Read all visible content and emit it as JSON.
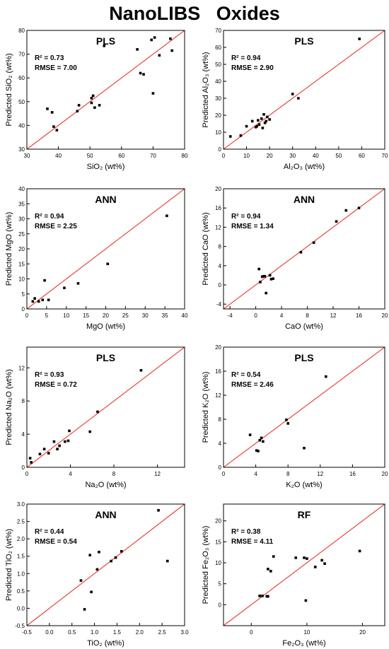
{
  "title": "NanoLIBS   Oxides",
  "chart_data": [
    {
      "type": "scatter",
      "method": "PLS",
      "stat_r2": "R² = 0.73",
      "stat_rmse": "RMSE = 7.00",
      "xlabel": "SiO₂ (wt%)",
      "ylabel": "Predicted SiO₂ (wt%)",
      "xlim": [
        30,
        80
      ],
      "ylim": [
        30,
        80
      ],
      "xticks": [
        30,
        40,
        50,
        60,
        70,
        80
      ],
      "yticks": [
        30,
        40,
        50,
        60,
        70,
        80
      ],
      "xticklabels": [
        "30",
        "40",
        "50",
        "60",
        "70",
        "80"
      ],
      "yticklabels": [
        "30",
        "40",
        "50",
        "60",
        "70",
        "80"
      ],
      "points": [
        [
          36.5,
          47
        ],
        [
          38,
          45.5
        ],
        [
          38.5,
          39.5
        ],
        [
          39.5,
          38
        ],
        [
          46,
          46
        ],
        [
          46.5,
          48.5
        ],
        [
          50.5,
          49.5
        ],
        [
          50.5,
          51.5
        ],
        [
          51,
          52.5
        ],
        [
          51.5,
          47.5
        ],
        [
          53,
          48.5
        ],
        [
          54.5,
          73.5
        ],
        [
          65,
          72
        ],
        [
          66,
          62
        ],
        [
          67,
          61.5
        ],
        [
          69.5,
          76
        ],
        [
          70,
          53.5
        ],
        [
          70.5,
          77
        ],
        [
          72,
          69.5
        ],
        [
          75.5,
          76.5
        ],
        [
          76,
          71.5
        ]
      ]
    },
    {
      "type": "scatter",
      "method": "PLS",
      "stat_r2": "R² = 0.94",
      "stat_rmse": "RMSE = 2.90",
      "xlabel": "Al₂O₃ (wt%)",
      "ylabel": "Predicted Al₂O₃ (wt%)",
      "xlim": [
        0,
        70
      ],
      "ylim": [
        0,
        70
      ],
      "xticks": [
        0,
        10,
        20,
        30,
        40,
        50,
        60,
        70
      ],
      "yticks": [
        0,
        10,
        20,
        30,
        40,
        50,
        60,
        70
      ],
      "xticklabels": [
        "0",
        "10",
        "20",
        "30",
        "40",
        "50",
        "60",
        "70"
      ],
      "yticklabels": [
        "0",
        "10",
        "20",
        "30",
        "40",
        "50",
        "60",
        "70"
      ],
      "points": [
        [
          3,
          7.5
        ],
        [
          7.5,
          8
        ],
        [
          10,
          13.5
        ],
        [
          12.5,
          16.5
        ],
        [
          14,
          13
        ],
        [
          14.5,
          13.5
        ],
        [
          15,
          17
        ],
        [
          15.5,
          14.5
        ],
        [
          16.5,
          18
        ],
        [
          17,
          12.5
        ],
        [
          17.5,
          20.5
        ],
        [
          18,
          15.5
        ],
        [
          18.5,
          16.5
        ],
        [
          19,
          19
        ],
        [
          20,
          17.5
        ],
        [
          30,
          32.5
        ],
        [
          32.5,
          30
        ],
        [
          59,
          65
        ]
      ]
    },
    {
      "type": "scatter",
      "method": "ANN",
      "stat_r2": "R² = 0.94",
      "stat_rmse": "RMSE = 2.25",
      "xlabel": "MgO (wt%)",
      "ylabel": "Predicted MgO (wt%)",
      "xlim": [
        0,
        40
      ],
      "ylim": [
        0,
        40
      ],
      "xticks": [
        0,
        5,
        10,
        15,
        20,
        25,
        30,
        35,
        40
      ],
      "yticks": [
        0,
        5,
        10,
        15,
        20,
        25,
        30,
        35,
        40
      ],
      "xticklabels": [
        "0",
        "5",
        "10",
        "15",
        "20",
        "25",
        "30",
        "35",
        "40"
      ],
      "yticklabels": [
        "0",
        "5",
        "10",
        "15",
        "20",
        "25",
        "30",
        "35",
        "40"
      ],
      "points": [
        [
          1.5,
          2.5
        ],
        [
          2,
          3.5
        ],
        [
          3,
          2.5
        ],
        [
          4,
          3
        ],
        [
          4.5,
          9.5
        ],
        [
          5.5,
          3
        ],
        [
          9.5,
          7
        ],
        [
          13,
          8.5
        ],
        [
          20.5,
          15
        ],
        [
          35.5,
          31
        ]
      ]
    },
    {
      "type": "scatter",
      "method": "ANN",
      "stat_r2": "R² = 0.94",
      "stat_rmse": "RMSE = 1.34",
      "xlabel": "CaO (wt%)",
      "ylabel": "Predicted CaO (wt%)",
      "xlim": [
        -5,
        20
      ],
      "ylim": [
        -5,
        20
      ],
      "xticks": [
        -4,
        0,
        4,
        8,
        12,
        16,
        20
      ],
      "yticks": [
        -4,
        0,
        4,
        8,
        12,
        16,
        20
      ],
      "xticklabels": [
        "-4",
        "0",
        "4",
        "8",
        "12",
        "16",
        "20"
      ],
      "yticklabels": [
        "-4",
        "0",
        "4",
        "8",
        "12",
        "16",
        "20"
      ],
      "points": [
        [
          0.5,
          3.3
        ],
        [
          0.7,
          0.6
        ],
        [
          1.0,
          1.7
        ],
        [
          1.2,
          1.8
        ],
        [
          1.4,
          1.8
        ],
        [
          1.6,
          -1.7
        ],
        [
          2.2,
          2.0
        ],
        [
          2.4,
          1.2
        ],
        [
          2.7,
          1.3
        ],
        [
          7,
          6.8
        ],
        [
          9,
          8.8
        ],
        [
          12.5,
          13.2
        ],
        [
          14,
          15.5
        ],
        [
          16,
          16
        ]
      ]
    },
    {
      "type": "scatter",
      "method": "PLS",
      "stat_r2": "R² = 0.93",
      "stat_rmse": "RMSE = 0.72",
      "xlabel": "Na₂O (wt%)",
      "ylabel": "Predicted Na₂O (wt%)",
      "xlim": [
        0,
        14.5
      ],
      "ylim": [
        0,
        14.5
      ],
      "xticks": [
        0,
        4,
        8,
        12
      ],
      "yticks": [
        0,
        4,
        8,
        12
      ],
      "xticklabels": [
        "0",
        "4",
        "8",
        "12"
      ],
      "yticklabels": [
        "0",
        "4",
        "8",
        "12"
      ],
      "points": [
        [
          0.3,
          1.1
        ],
        [
          0.4,
          0.6
        ],
        [
          1.2,
          1.6
        ],
        [
          1.6,
          2.2
        ],
        [
          2,
          1.7
        ],
        [
          2.5,
          3.1
        ],
        [
          2.8,
          2.2
        ],
        [
          3,
          2.6
        ],
        [
          3.5,
          3.1
        ],
        [
          3.8,
          3.2
        ],
        [
          3.9,
          4.4
        ],
        [
          5.8,
          4.3
        ],
        [
          6.5,
          6.7
        ],
        [
          10.5,
          11.7
        ]
      ]
    },
    {
      "type": "scatter",
      "method": "PLS",
      "stat_r2": "R² = 0.54",
      "stat_rmse": "RMSE = 2.46",
      "xlabel": "K₂O (wt%)",
      "ylabel": "Predicted K₂O (wt%)",
      "xlim": [
        0,
        20
      ],
      "ylim": [
        0,
        20
      ],
      "xticks": [
        0,
        4,
        8,
        12,
        16,
        20
      ],
      "yticks": [
        0,
        4,
        8,
        12,
        16,
        20
      ],
      "xticklabels": [
        "0",
        "4",
        "8",
        "12",
        "16",
        "20"
      ],
      "yticklabels": [
        "0",
        "4",
        "8",
        "12",
        "16",
        "20"
      ],
      "points": [
        [
          3.3,
          5.4
        ],
        [
          4.1,
          2.8
        ],
        [
          4.3,
          2.7
        ],
        [
          4.5,
          4.5
        ],
        [
          4.7,
          4.9
        ],
        [
          4.9,
          4.3
        ],
        [
          7.8,
          7.9
        ],
        [
          8,
          7.3
        ],
        [
          10,
          3.2
        ],
        [
          12.7,
          15.1
        ]
      ]
    },
    {
      "type": "scatter",
      "method": "ANN",
      "stat_r2": "R² = 0.44",
      "stat_rmse": "RMSE = 0.54",
      "xlabel": "TiO₂ (wt%)",
      "ylabel": "Predicted TiO₂ (wt%)",
      "xlim": [
        -0.5,
        3.0
      ],
      "ylim": [
        -0.5,
        3.0
      ],
      "xticks": [
        -0.5,
        0.0,
        0.5,
        1.0,
        1.5,
        2.0,
        2.5,
        3.0
      ],
      "yticks": [
        -0.5,
        0.0,
        0.5,
        1.0,
        1.5,
        2.0,
        2.5,
        3.0
      ],
      "xticklabels": [
        "-0.5",
        "0.0",
        "0.5",
        "1.0",
        "1.5",
        "2.0",
        "2.5",
        "3.0"
      ],
      "yticklabels": [
        "-0.5",
        "0.0",
        "0.5",
        "1.0",
        "1.5",
        "2.0",
        "2.5",
        "3.0"
      ],
      "points": [
        [
          0.7,
          0.8
        ],
        [
          0.78,
          -0.03
        ],
        [
          0.9,
          1.53
        ],
        [
          0.93,
          0.47
        ],
        [
          1.06,
          1.12
        ],
        [
          1.1,
          1.62
        ],
        [
          1.37,
          1.36
        ],
        [
          1.47,
          1.46
        ],
        [
          1.6,
          1.64
        ],
        [
          2.42,
          2.82
        ],
        [
          2.62,
          1.36
        ]
      ]
    },
    {
      "type": "scatter",
      "method": "RF",
      "stat_r2": "R² = 0.38",
      "stat_rmse": "RMSE = 4.11",
      "xlabel": "Fe₂O₃ (wt%)",
      "ylabel": "Predicted Fe₂O₃ (wt%)",
      "xlim": [
        -5,
        24
      ],
      "ylim": [
        -5,
        24
      ],
      "xticks": [
        0,
        10,
        20
      ],
      "yticks": [
        0,
        5,
        10,
        15,
        20
      ],
      "xticklabels": [
        "0",
        "10",
        "20"
      ],
      "yticklabels": [
        "0",
        "5",
        "10",
        "15",
        "20"
      ],
      "points": [
        [
          1.5,
          2.1
        ],
        [
          2,
          2.1
        ],
        [
          2.8,
          2
        ],
        [
          3,
          2
        ],
        [
          3,
          8.5
        ],
        [
          3.5,
          8
        ],
        [
          4,
          11.5
        ],
        [
          8,
          11.2
        ],
        [
          9.5,
          11.2
        ],
        [
          10,
          11
        ],
        [
          9.8,
          1
        ],
        [
          11.5,
          9
        ],
        [
          12.7,
          10.6
        ],
        [
          13.2,
          9.8
        ],
        [
          19.5,
          12.8
        ]
      ]
    }
  ]
}
